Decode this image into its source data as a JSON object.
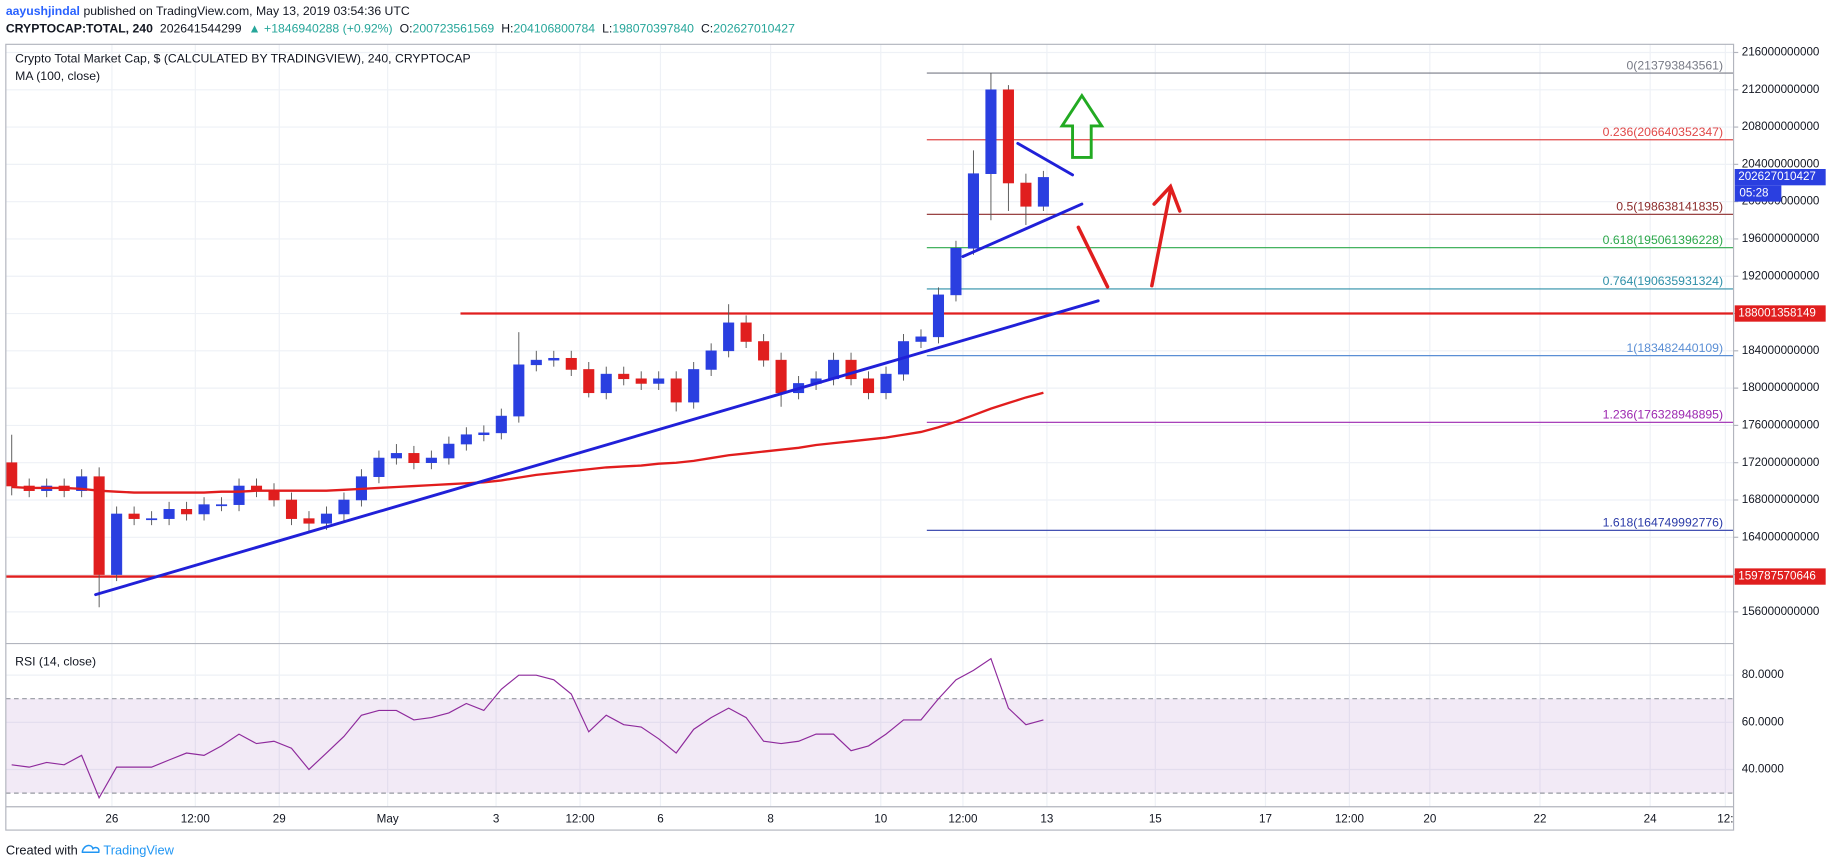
{
  "header": {
    "publisher": "aayushjindal",
    "published": "published on TradingView.com, May 13, 2019 03:54:36 UTC",
    "symbol": "CRYPTOCAP:TOTAL, 240",
    "price": "202641544299",
    "change": "▲ +1846940288 (+0.92%)",
    "ohlc": [
      {
        "k": "O:",
        "v": "200723561569"
      },
      {
        "k": "H:",
        "v": "204106800784"
      },
      {
        "k": "L:",
        "v": "198070397840"
      },
      {
        "k": "C:",
        "v": "202627010427"
      }
    ]
  },
  "footer": {
    "created": "Created with",
    "brand": "TradingView"
  },
  "chart_data": [
    {
      "type": "candlestick",
      "title": "Crypto Total Market Cap, $ (CALCULATED BY TRADINGVIEW), 240, CRYPTOCAP",
      "up_color": "#2a3fe0",
      "down_color": "#e01e1e",
      "open": [
        172000000000.0,
        169500000000.0,
        169000000000.0,
        169500000000.0,
        169000000000.0,
        170500000000.0,
        160000000000.0,
        166500000000.0,
        166000000000.0,
        166000000000.0,
        167000000000.0,
        166500000000.0,
        167500000000.0,
        167500000000.0,
        169500000000.0,
        169000000000.0,
        168000000000.0,
        166000000000.0,
        165500000000.0,
        166500000000.0,
        168000000000.0,
        170500000000.0,
        172500000000.0,
        173000000000.0,
        172000000000.0,
        172500000000.0,
        174000000000.0,
        175000000000.0,
        175200000000.0,
        177000000000.0,
        182500000000.0,
        183000000000.0,
        183200000000.0,
        182000000000.0,
        179500000000.0,
        181500000000.0,
        181000000000.0,
        180500000000.0,
        181000000000.0,
        178500000000.0,
        182000000000.0,
        184000000000.0,
        187000000000.0,
        185000000000.0,
        183000000000.0,
        179500000000.0,
        180500000000.0,
        181000000000.0,
        183000000000.0,
        181000000000.0,
        179500000000.0,
        181500000000.0,
        185000000000.0,
        185500000000.0,
        190000000000.0,
        195000000000.0,
        203000000000.0,
        212000000000.0,
        202000000000.0,
        199500000000.0
      ],
      "high": [
        175000000000.0,
        170300000000.0,
        170300000000.0,
        170300000000.0,
        171300000000.0,
        171500000000.0,
        167300000000.0,
        167300000000.0,
        166800000000.0,
        167800000000.0,
        167800000000.0,
        168300000000.0,
        168300000000.0,
        170300000000.0,
        170300000000.0,
        169800000000.0,
        168800000000.0,
        166800000000.0,
        167300000000.0,
        168800000000.0,
        171300000000.0,
        173300000000.0,
        174000000000.0,
        173800000000.0,
        173300000000.0,
        174800000000.0,
        175800000000.0,
        176000000000.0,
        177800000000.0,
        186000000000.0,
        184000000000.0,
        184000000000.0,
        184000000000.0,
        182800000000.0,
        182300000000.0,
        182300000000.0,
        181800000000.0,
        181800000000.0,
        181800000000.0,
        182800000000.0,
        184800000000.0,
        189000000000.0,
        187800000000.0,
        185800000000.0,
        183800000000.0,
        181300000000.0,
        181800000000.0,
        183800000000.0,
        183800000000.0,
        181800000000.0,
        182300000000.0,
        185800000000.0,
        186300000000.0,
        190800000000.0,
        195800000000.0,
        205500000000.0,
        213800000000.0,
        212500000000.0,
        203000000000.0,
        203300000000.0
      ],
      "low": [
        168500000000.0,
        168300000000.0,
        168300000000.0,
        168300000000.0,
        168300000000.0,
        156500000000.0,
        159300000000.0,
        165300000000.0,
        165300000000.0,
        165300000000.0,
        165800000000.0,
        165800000000.0,
        166800000000.0,
        166800000000.0,
        168300000000.0,
        167300000000.0,
        165300000000.0,
        164500000000.0,
        164800000000.0,
        165800000000.0,
        167300000000.0,
        169800000000.0,
        171800000000.0,
        171300000000.0,
        171300000000.0,
        171800000000.0,
        173300000000.0,
        174300000000.0,
        174500000000.0,
        176300000000.0,
        181800000000.0,
        182300000000.0,
        181300000000.0,
        179000000000.0,
        178800000000.0,
        180300000000.0,
        179800000000.0,
        179800000000.0,
        177500000000.0,
        177800000000.0,
        181300000000.0,
        183300000000.0,
        184300000000.0,
        182300000000.0,
        178000000000.0,
        178800000000.0,
        179800000000.0,
        180300000000.0,
        180300000000.0,
        178800000000.0,
        178800000000.0,
        180800000000.0,
        184300000000.0,
        184800000000.0,
        189300000000.0,
        194300000000.0,
        198000000000.0,
        199000000000.0,
        197500000000.0,
        199000000000.0
      ],
      "close": [
        169500000000.0,
        169000000000.0,
        169500000000.0,
        169000000000.0,
        170500000000.0,
        160000000000.0,
        166500000000.0,
        166000000000.0,
        166000000000.0,
        167000000000.0,
        166500000000.0,
        167500000000.0,
        167500000000.0,
        169500000000.0,
        169000000000.0,
        168000000000.0,
        166000000000.0,
        165500000000.0,
        166500000000.0,
        168000000000.0,
        170500000000.0,
        172500000000.0,
        173000000000.0,
        172000000000.0,
        172500000000.0,
        174000000000.0,
        175000000000.0,
        175200000000.0,
        177000000000.0,
        182500000000.0,
        183000000000.0,
        183200000000.0,
        182000000000.0,
        179500000000.0,
        181500000000.0,
        181000000000.0,
        180500000000.0,
        181000000000.0,
        178500000000.0,
        182000000000.0,
        184000000000.0,
        187000000000.0,
        185000000000.0,
        183000000000.0,
        179500000000.0,
        180500000000.0,
        181000000000.0,
        183000000000.0,
        181000000000.0,
        179500000000.0,
        181500000000.0,
        185000000000.0,
        185500000000.0,
        190000000000.0,
        195000000000.0,
        203000000000.0,
        212000000000.0,
        202000000000.0,
        199500000000.0,
        202600000000.0
      ],
      "series": [
        {
          "name": "MA (100, close)",
          "color": "#e11d1d",
          "values": [
            169400000000.0,
            169300000000.0,
            169300000000.0,
            169300000000.0,
            169200000000.0,
            169000000000.0,
            168900000000.0,
            168800000000.0,
            168800000000.0,
            168800000000.0,
            168800000000.0,
            168800000000.0,
            168900000000.0,
            168900000000.0,
            169000000000.0,
            169000000000.0,
            169000000000.0,
            169000000000.0,
            169000000000.0,
            169100000000.0,
            169200000000.0,
            169300000000.0,
            169400000000.0,
            169500000000.0,
            169600000000.0,
            169700000000.0,
            169800000000.0,
            169900000000.0,
            170100000000.0,
            170400000000.0,
            170700000000.0,
            170900000000.0,
            171100000000.0,
            171300000000.0,
            171500000000.0,
            171600000000.0,
            171700000000.0,
            171900000000.0,
            172000000000.0,
            172200000000.0,
            172500000000.0,
            172800000000.0,
            173000000000.0,
            173200000000.0,
            173400000000.0,
            173600000000.0,
            173900000000.0,
            174100000000.0,
            174300000000.0,
            174500000000.0,
            174700000000.0,
            175000000000.0,
            175300000000.0,
            175800000000.0,
            176400000000.0,
            177100000000.0,
            177800000000.0,
            178400000000.0,
            179000000000.0,
            179500000000.0
          ]
        }
      ],
      "xlim": [
        -0.67,
        98.47
      ],
      "ylim": [
        152600000000.0,
        216875000000.0
      ],
      "yticks": [
        216000000000,
        212000000000,
        208000000000,
        204000000000,
        200000000000,
        196000000000,
        192000000000,
        188000000000,
        184000000000,
        180000000000,
        176000000000,
        172000000000,
        168000000000,
        164000000000,
        160000000000,
        156000000000
      ],
      "grid": true,
      "last_price": 202627010427,
      "last_color": "#2a3fe0",
      "countdown": "05:28",
      "hlines": [
        {
          "value": 188001358149,
          "color": "#e01e1e"
        },
        {
          "value": 159787570646,
          "color": "#e01e1e"
        }
      ],
      "fib": [
        {
          "label": "0(213793843561)",
          "value": 213793843561,
          "color": "#787b86"
        },
        {
          "label": "0.236(206640352347)",
          "value": 206640352347,
          "color": "#e04848"
        },
        {
          "label": "0.5(198638141835)",
          "value": 198638141835,
          "color": "#8b2a2a"
        },
        {
          "label": "0.618(195061396228)",
          "value": 195061396228,
          "color": "#2ba84a"
        },
        {
          "label": "0.764(190635931324)",
          "value": 190635931324,
          "color": "#2e8fa8"
        },
        {
          "label": "1(183482440109)",
          "value": 183482440109,
          "color": "#5b8fd5"
        },
        {
          "label": "1.236(176328948895)",
          "value": 176328948895,
          "color": "#9c27b0"
        },
        {
          "label": "1.618(164749992776)",
          "value": 164749992776,
          "color": "#2a3aa8"
        }
      ]
    },
    {
      "type": "line",
      "series": [
        {
          "name": "RSI (14, close)",
          "color": "#8e2a9c",
          "values": [
            42,
            41,
            43,
            42,
            46,
            28,
            41,
            41,
            41,
            44,
            47,
            46,
            50,
            55,
            51,
            52,
            49,
            40,
            47,
            54,
            63,
            65,
            65,
            61,
            62,
            64,
            68,
            65,
            74,
            80,
            80,
            78,
            72,
            56,
            63,
            59,
            58,
            53,
            47,
            57,
            62,
            66,
            62,
            52,
            51,
            52,
            55,
            55,
            48,
            50,
            55,
            61,
            61,
            70,
            78,
            82,
            87,
            66,
            59,
            61
          ]
        }
      ],
      "ylim": [
        25.2,
        91.9
      ],
      "bands": [
        70,
        30
      ],
      "band_color": "#9b59b6",
      "yticks": [
        {
          "value": 80,
          "label": "80.0000"
        },
        {
          "value": 60,
          "label": "60.0000"
        },
        {
          "value": 40,
          "label": "40.0000"
        }
      ],
      "xlim": [
        -0.67,
        98.47
      ],
      "xticks": [
        {
          "value": 5.73,
          "label": "26"
        },
        {
          "value": 10.5,
          "label": "12:00"
        },
        {
          "value": 15.3,
          "label": "29"
        },
        {
          "value": 21.5,
          "label": "May"
        },
        {
          "value": 27.7,
          "label": "3"
        },
        {
          "value": 32.5,
          "label": "12:00"
        },
        {
          "value": 37.1,
          "label": "6"
        },
        {
          "value": 43.4,
          "label": "8"
        },
        {
          "value": 49.7,
          "label": "10"
        },
        {
          "value": 54.4,
          "label": "12:00"
        },
        {
          "value": 59.2,
          "label": "13"
        },
        {
          "value": 65.4,
          "label": "15"
        },
        {
          "value": 71.7,
          "label": "17"
        },
        {
          "value": 76.5,
          "label": "12:00"
        },
        {
          "value": 81.1,
          "label": "20"
        },
        {
          "value": 87.4,
          "label": "22"
        },
        {
          "value": 93.7,
          "label": "24"
        },
        {
          "value": 98,
          "label": "12:"
        }
      ]
    }
  ]
}
